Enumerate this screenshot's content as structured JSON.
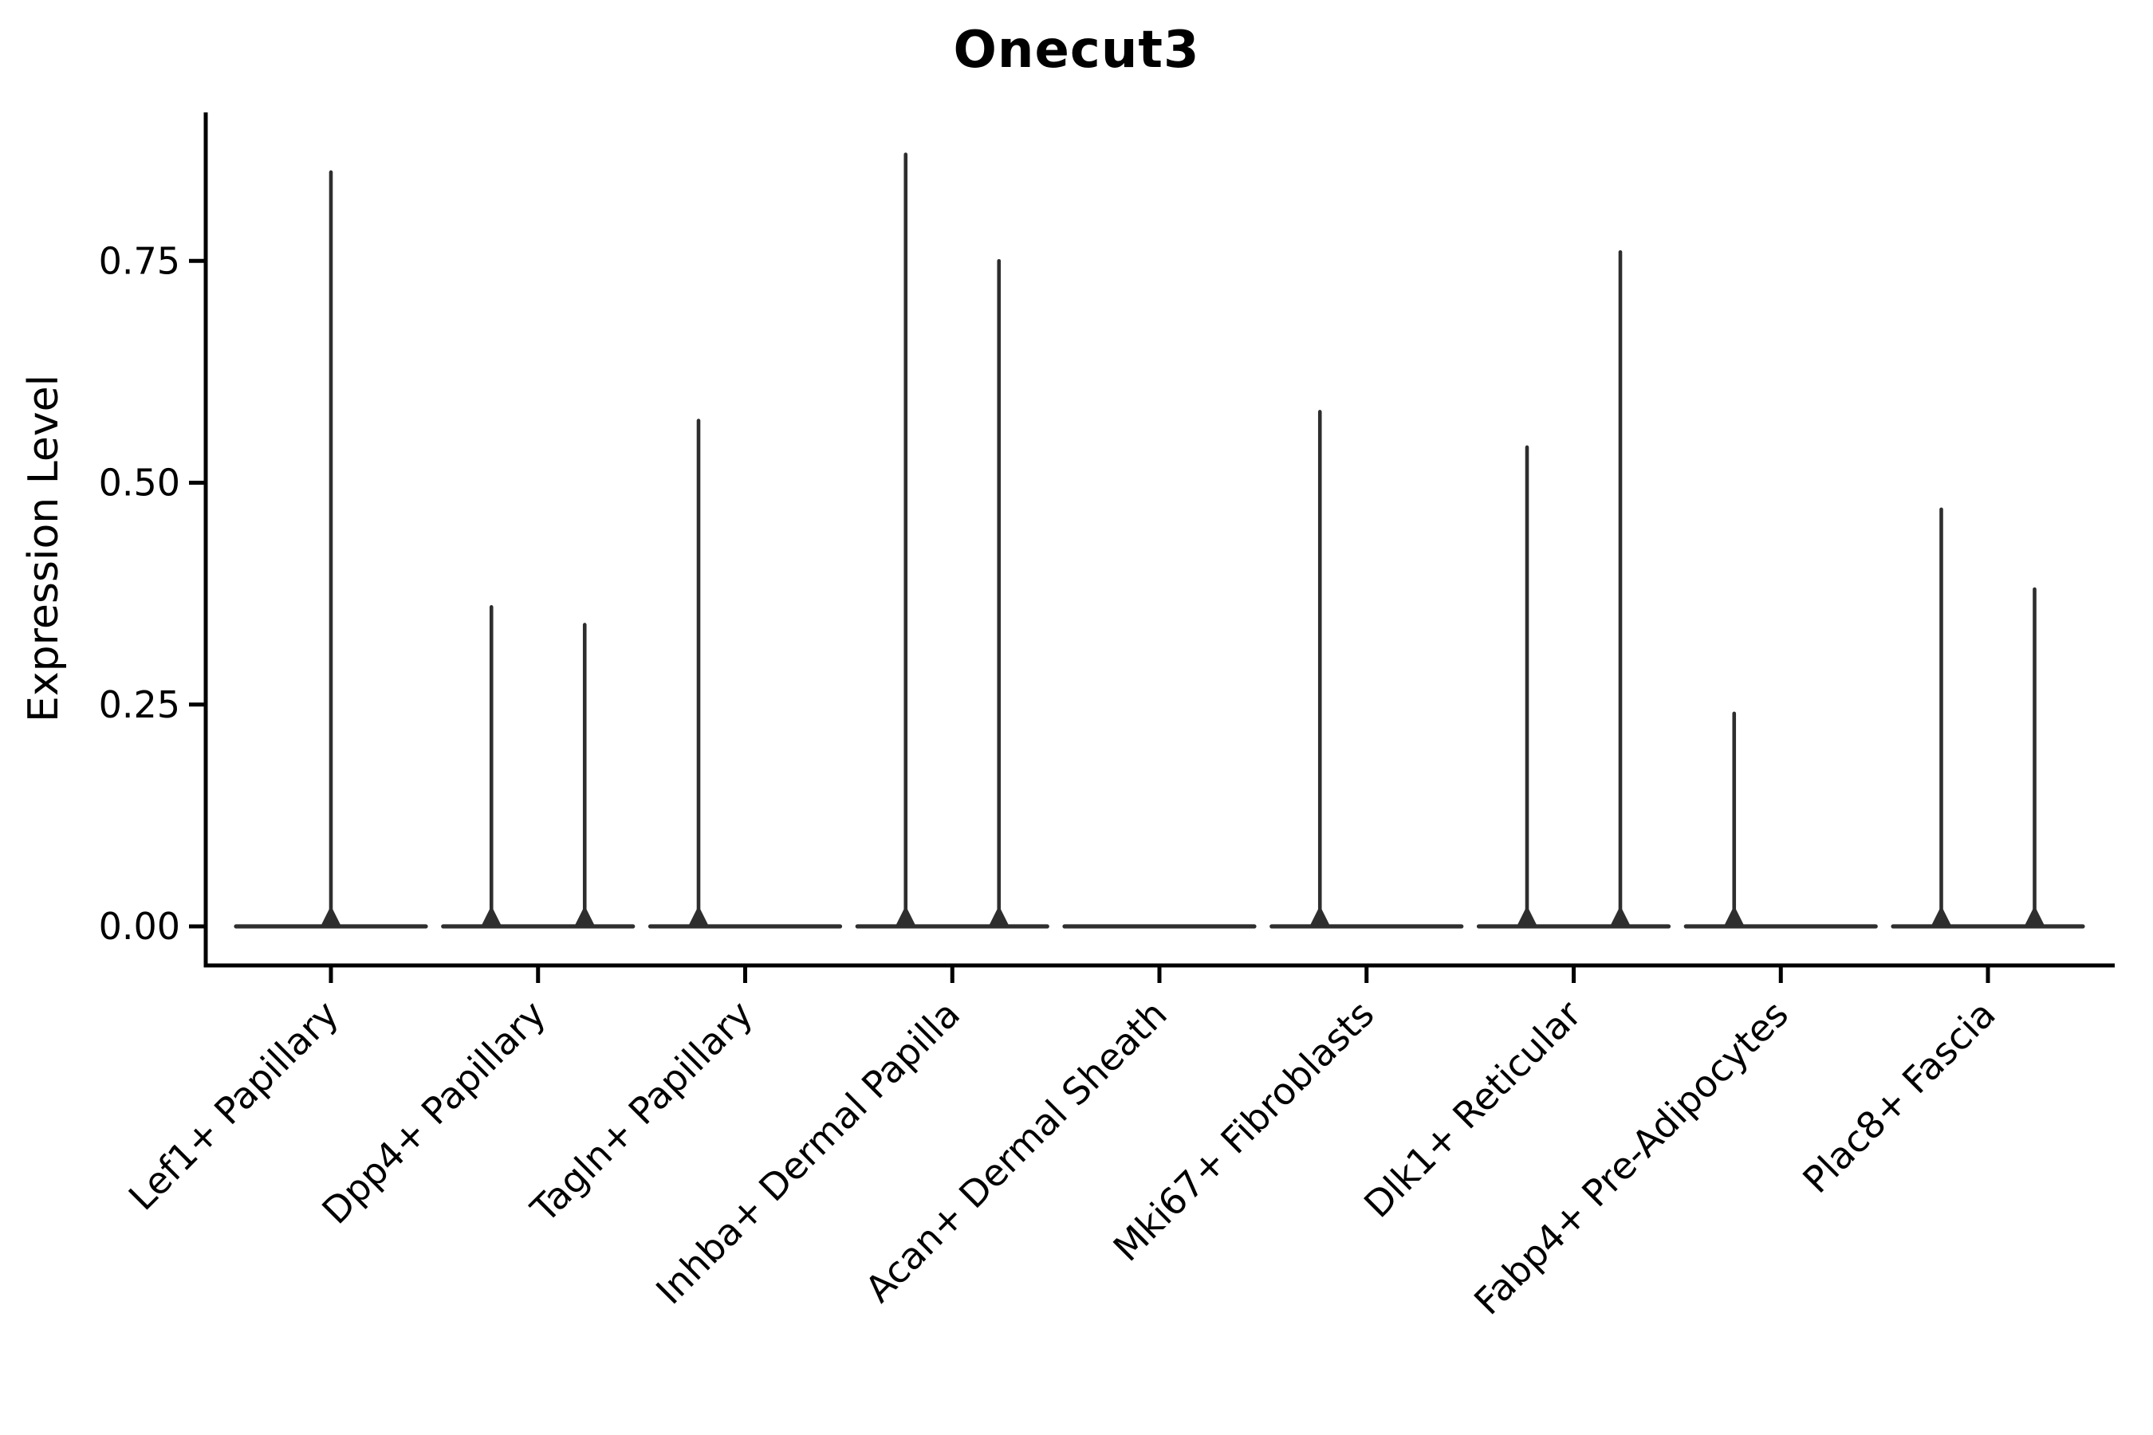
{
  "chart_data": {
    "type": "violin",
    "title": "Onecut3",
    "xlabel": "",
    "ylabel": "Expression Level",
    "ylim": [
      0,
      0.92
    ],
    "yticks": [
      0.0,
      0.25,
      0.5,
      0.75
    ],
    "ytick_labels": [
      "0.00",
      "0.25",
      "0.50",
      "0.75"
    ],
    "grid": "off",
    "legend": "none",
    "categories": [
      "Lef1+ Papillary",
      "Dpp4+ Papillary",
      "Tagln+ Papillary",
      "Inhba+ Dermal Papilla",
      "Acan+ Dermal Sheath",
      "Mki67+ Fibroblasts",
      "Dlk1+ Reticular",
      "Fabp4+ Pre-Adipocytes",
      "Plac8+ Fascia"
    ],
    "violins": [
      {
        "category": "Lef1+ Papillary",
        "spikes": [
          {
            "pos": "center",
            "max": 0.85
          }
        ]
      },
      {
        "category": "Dpp4+ Papillary",
        "spikes": [
          {
            "pos": "left",
            "max": 0.36
          },
          {
            "pos": "right",
            "max": 0.34
          }
        ]
      },
      {
        "category": "Tagln+ Papillary",
        "spikes": [
          {
            "pos": "left",
            "max": 0.57
          }
        ]
      },
      {
        "category": "Inhba+ Dermal Papilla",
        "spikes": [
          {
            "pos": "left",
            "max": 0.87
          },
          {
            "pos": "right",
            "max": 0.75
          }
        ]
      },
      {
        "category": "Acan+ Dermal Sheath",
        "spikes": []
      },
      {
        "category": "Mki67+ Fibroblasts",
        "spikes": [
          {
            "pos": "left",
            "max": 0.58
          }
        ]
      },
      {
        "category": "Dlk1+ Reticular",
        "spikes": [
          {
            "pos": "left",
            "max": 0.54
          },
          {
            "pos": "right",
            "max": 0.76
          }
        ]
      },
      {
        "category": "Fabp4+ Pre-Adipocytes",
        "spikes": [
          {
            "pos": "left",
            "max": 0.24
          }
        ]
      },
      {
        "category": "Plac8+ Fascia",
        "spikes": [
          {
            "pos": "left",
            "max": 0.47
          },
          {
            "pos": "right",
            "max": 0.38
          }
        ]
      }
    ],
    "colors": {
      "violin_line": "#2e2e2e",
      "axis": "#000000",
      "text": "#000000",
      "background": "#ffffff"
    }
  }
}
